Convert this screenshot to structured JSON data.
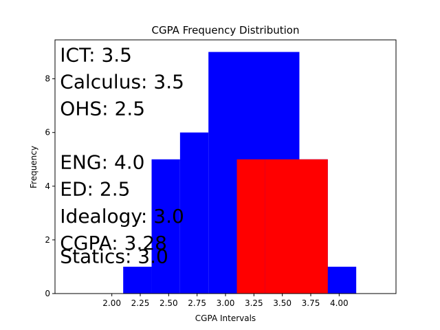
{
  "chart_data": {
    "type": "bar",
    "title": "CGPA Frequency Distribution",
    "xlabel": "CGPA Intervals",
    "ylabel": "Frequency",
    "xlim": [
      1.5,
      4.5
    ],
    "ylim": [
      0,
      9.45
    ],
    "x_ticks": [
      "2.00",
      "2.25",
      "2.50",
      "2.75",
      "3.00",
      "3.25",
      "3.50",
      "3.75",
      "4.00"
    ],
    "y_ticks": [
      "0",
      "2",
      "4",
      "6",
      "8"
    ],
    "grid": false,
    "series": [
      {
        "color": "#0000ff",
        "bars": [
          {
            "x0": 2.1,
            "x1": 2.35,
            "value": 1
          },
          {
            "x0": 2.35,
            "x1": 2.6,
            "value": 5
          },
          {
            "x0": 2.6,
            "x1": 2.85,
            "value": 6
          },
          {
            "x0": 2.85,
            "x1": 3.65,
            "value": 9
          },
          {
            "x0": 3.65,
            "x1": 3.9,
            "value": 5
          },
          {
            "x0": 3.35,
            "x1": 4.15,
            "value": 1
          }
        ]
      },
      {
        "color": "#ff0000",
        "bars": [
          {
            "x0": 3.1,
            "x1": 3.35,
            "value": 5
          },
          {
            "x0": 3.35,
            "x1": 3.9,
            "value": 5
          }
        ]
      }
    ],
    "annotations": [
      {
        "text": "ICT: 3.5",
        "x": 1.52,
        "y": 8.9
      },
      {
        "text": "Calculus: 3.5",
        "x": 1.52,
        "y": 7.9
      },
      {
        "text": "OHS: 2.5",
        "x": 1.52,
        "y": 6.9
      },
      {
        "text": "ENG: 4.0",
        "x": 1.52,
        "y": 4.9
      },
      {
        "text": "ED: 2.5",
        "x": 1.52,
        "y": 3.9
      },
      {
        "text": "Idealogy: 3.0",
        "x": 1.52,
        "y": 2.9
      },
      {
        "text": "CGPA: 3.28",
        "x": 1.52,
        "y": 1.9
      },
      {
        "text": "Statics: 3.0",
        "x": 1.52,
        "y": 1.4
      }
    ]
  }
}
